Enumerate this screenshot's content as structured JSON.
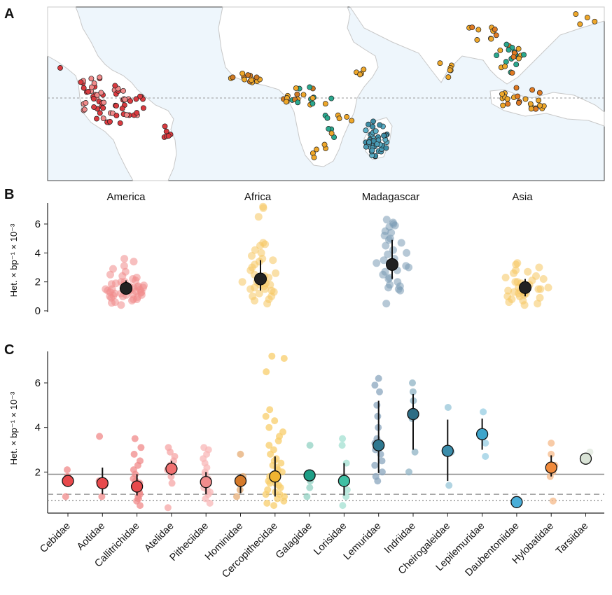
{
  "panels": {
    "a": {
      "letter": "A"
    },
    "b": {
      "letter": "B"
    },
    "c": {
      "letter": "C"
    }
  },
  "colors": {
    "america": "#d93a3f",
    "america_light": "#f08a8a",
    "africa": "#eea72a",
    "africa_dark": "#d07a22",
    "africa_teal": "#2aa88e",
    "madagascar": "#4a9bb5",
    "asia": "#eea72a",
    "asia_dark": "#e07a22",
    "ocean": "#eef6fc",
    "land": "#ffffff",
    "equator": "#9a9a9a",
    "axis": "#222222"
  },
  "chart_data": [
    {
      "type": "scatter",
      "title": "",
      "ylabel": "Het. × bp⁻¹ × 10⁻³",
      "ylim": [
        0,
        7.5
      ],
      "yticks": [
        0,
        2,
        4,
        6
      ],
      "categories": [
        "America",
        "Africa",
        "Madagascar",
        "Asia"
      ],
      "means": [
        1.55,
        2.2,
        3.2,
        1.6
      ],
      "error_low": [
        1.2,
        1.4,
        2.2,
        1.0
      ],
      "error_high": [
        2.1,
        3.5,
        4.9,
        2.2
      ],
      "point_colors": [
        "#f08a8a",
        "#f6c660",
        "#7a9ab5",
        "#f6c660"
      ],
      "points": [
        [
          0.4,
          0.55,
          0.6,
          0.7,
          0.8,
          0.8,
          0.9,
          0.95,
          1.0,
          1.0,
          1.05,
          1.1,
          1.1,
          1.15,
          1.2,
          1.2,
          1.25,
          1.3,
          1.3,
          1.35,
          1.4,
          1.4,
          1.45,
          1.5,
          1.5,
          1.5,
          1.55,
          1.6,
          1.6,
          1.65,
          1.7,
          1.7,
          1.75,
          1.8,
          1.85,
          1.9,
          2.0,
          2.0,
          2.1,
          2.2,
          2.3,
          2.4,
          2.5,
          2.7,
          2.9,
          3.1,
          3.4,
          3.6
        ],
        [
          0.5,
          0.7,
          0.8,
          1.0,
          1.0,
          1.2,
          1.3,
          1.4,
          1.5,
          1.5,
          1.6,
          1.7,
          1.8,
          1.8,
          1.9,
          2.0,
          2.0,
          2.1,
          2.2,
          2.3,
          2.4,
          2.5,
          2.6,
          2.8,
          3.0,
          3.2,
          3.4,
          3.5,
          3.6,
          3.8,
          4.0,
          4.2,
          4.5,
          4.6,
          4.7,
          6.5,
          7.1,
          7.2
        ],
        [
          0.5,
          1.4,
          1.5,
          1.6,
          1.7,
          1.8,
          2.0,
          2.2,
          2.3,
          2.5,
          2.7,
          2.8,
          3.0,
          3.1,
          3.3,
          3.5,
          3.6,
          3.9,
          4.0,
          4.2,
          4.5,
          4.7,
          4.9,
          5.0,
          5.2,
          5.4,
          5.5,
          5.8,
          5.9,
          6.0,
          6.1,
          6.3
        ],
        [
          0.4,
          0.5,
          0.6,
          0.7,
          0.8,
          0.9,
          1.0,
          1.0,
          1.1,
          1.2,
          1.2,
          1.3,
          1.3,
          1.4,
          1.4,
          1.5,
          1.5,
          1.6,
          1.6,
          1.7,
          1.8,
          1.8,
          1.9,
          2.0,
          2.0,
          2.1,
          2.2,
          2.3,
          2.4,
          2.6,
          2.7,
          2.8,
          3.0,
          3.2,
          3.3
        ]
      ]
    },
    {
      "type": "scatter",
      "title": "",
      "ylabel": "Het. × bp⁻¹ × 10⁻³",
      "ylim": [
        0,
        7.5
      ],
      "yticks": [
        2,
        4,
        6
      ],
      "hlines": [
        1.9,
        1.0,
        0.72
      ],
      "categories": [
        "Cebidae",
        "Aotidae",
        "Callitrichidae",
        "Atelidae",
        "Pitheciidae",
        "Hominidae",
        "Cercopithecidae",
        "Galagidae",
        "Lorisidae",
        "Lemuridae",
        "Indriidae",
        "Cheirogaleidae",
        "Lepilemuridae",
        "Daubentoniidae",
        "Hylobatidae",
        "Tarsiidae"
      ],
      "means": [
        1.6,
        1.5,
        1.35,
        2.15,
        1.55,
        1.6,
        1.8,
        1.85,
        1.6,
        3.2,
        4.6,
        2.95,
        3.7,
        0.65,
        2.2,
        2.6
      ],
      "error_low": [
        null,
        1.0,
        0.95,
        1.85,
        1.0,
        1.05,
        0.9,
        null,
        0.95,
        1.95,
        3.0,
        1.6,
        3.0,
        null,
        1.8,
        null
      ],
      "error_high": [
        null,
        2.2,
        1.9,
        2.5,
        2.0,
        1.9,
        2.7,
        null,
        2.4,
        5.2,
        5.5,
        4.35,
        4.4,
        null,
        2.75,
        null
      ],
      "colors": [
        "#e8494c",
        "#e8494c",
        "#e8494c",
        "#f07070",
        "#f28c8c",
        "#d57a2a",
        "#f0b431",
        "#1e9e86",
        "#3fbfa3",
        "#2e7890",
        "#2e6d85",
        "#3b8dab",
        "#3ea5cb",
        "#4aaed8",
        "#f08a3c",
        "#d9e3d6"
      ],
      "light_colors": [
        "#f08a8a",
        "#f08a8a",
        "#f08a8a",
        "#f6a5a5",
        "#f8b7b7",
        "#e6ac74",
        "#f8cd6b",
        "#92d1c3",
        "#a3e0d2",
        "#8aa5bd",
        "#8fb3c4",
        "#97c6d8",
        "#97cde3",
        "#a8d8ed",
        "#f6b98a",
        "#e0e8dd"
      ],
      "points": [
        [
          0.9,
          1.6,
          1.8,
          2.1
        ],
        [
          0.9,
          1.4,
          1.6,
          3.6
        ],
        [
          0.5,
          0.7,
          0.8,
          0.9,
          1.0,
          1.1,
          1.2,
          1.3,
          1.4,
          1.5,
          1.6,
          1.7,
          1.9,
          2.1,
          2.3,
          2.5,
          2.8,
          3.1,
          3.5
        ],
        [
          0.4,
          1.5,
          1.8,
          2.0,
          2.1,
          2.3,
          2.5,
          2.7,
          2.9,
          3.1
        ],
        [
          0.6,
          0.8,
          1.0,
          1.1,
          1.2,
          1.3,
          1.5,
          1.6,
          1.7,
          1.9,
          2.0,
          2.2,
          2.4,
          2.6,
          2.8,
          3.0,
          3.1
        ],
        [
          0.9,
          1.2,
          1.5,
          1.8,
          2.8
        ],
        [
          0.5,
          0.6,
          0.7,
          0.8,
          0.9,
          1.0,
          1.0,
          1.1,
          1.2,
          1.3,
          1.4,
          1.5,
          1.5,
          1.6,
          1.7,
          1.8,
          1.9,
          2.0,
          2.1,
          2.2,
          2.3,
          2.4,
          2.5,
          2.6,
          2.8,
          3.0,
          3.2,
          3.4,
          3.6,
          3.8,
          4.0,
          4.3,
          4.5,
          4.8,
          6.5,
          7.1,
          7.2
        ],
        [
          0.9,
          1.3,
          1.6,
          1.9,
          3.2
        ],
        [
          0.5,
          0.9,
          1.2,
          1.6,
          2.4,
          3.2,
          3.5
        ],
        [
          1.6,
          1.8,
          2.0,
          2.3,
          2.5,
          2.8,
          3.0,
          3.3,
          3.5,
          4.0,
          4.5,
          5.0,
          5.6,
          5.9,
          6.2
        ],
        [
          2.0,
          2.9,
          4.4,
          5.2,
          5.6,
          6.0
        ],
        [
          1.4,
          2.9,
          4.9
        ],
        [
          2.7,
          3.3,
          4.7
        ],
        [
          0.65
        ],
        [
          0.7,
          1.8,
          2.0,
          2.3,
          2.8,
          3.3
        ],
        [
          2.55,
          2.9
        ]
      ]
    }
  ],
  "map": {
    "equator_label": "",
    "america_points": 85,
    "africa_points": 55,
    "madagascar_points": 40,
    "asia_points": 70
  }
}
